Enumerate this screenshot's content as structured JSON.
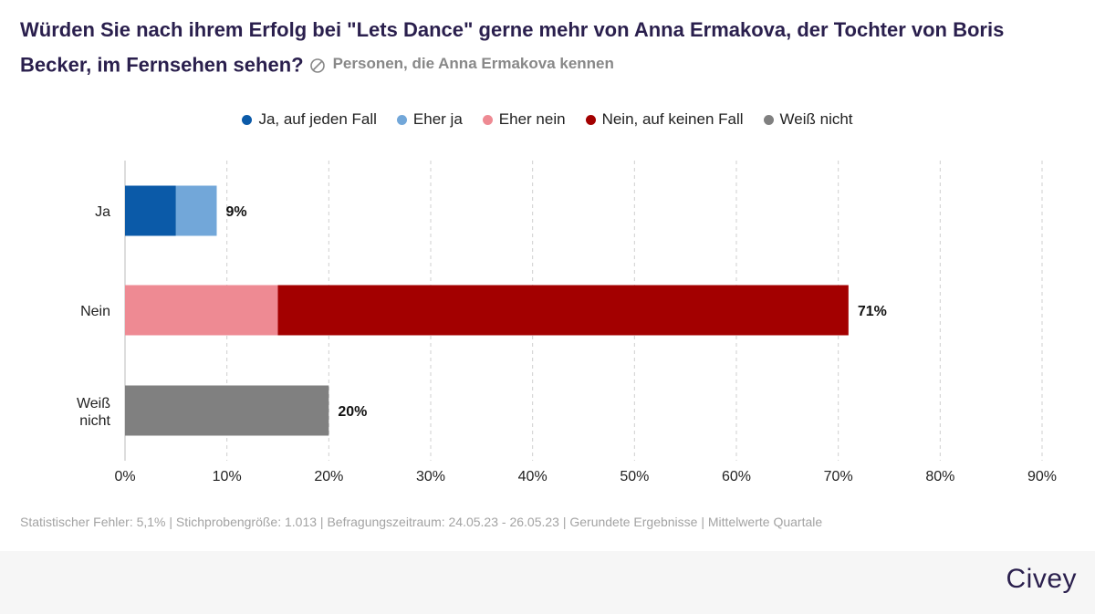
{
  "title": "Würden Sie nach ihrem Erfolg bei \"Lets Dance\" gerne mehr von Anna Ermakova, der Tochter von Boris Becker, im Fernsehen sehen?",
  "subtitle": "Personen, die Anna Ermakova kennen",
  "footer_note": "Statistischer Fehler: 5,1% | Stichprobengröße: 1.013 | Befragungszeitraum: 24.05.23 - 26.05.23 | Gerundete Ergebnisse | Mittelwerte Quartale",
  "brand": "Civey",
  "legend": [
    {
      "label": "Ja, auf jeden Fall",
      "color": "#0b5aa8"
    },
    {
      "label": "Eher ja",
      "color": "#72a7d9"
    },
    {
      "label": "Eher nein",
      "color": "#ee8a93"
    },
    {
      "label": "Nein, auf keinen Fall",
      "color": "#a30000"
    },
    {
      "label": "Weiß nicht",
      "color": "#808080"
    }
  ],
  "chart_data": {
    "type": "bar",
    "orientation": "horizontal",
    "stacked": true,
    "categories": [
      "Ja",
      "Nein",
      "Weiß nicht"
    ],
    "series": [
      {
        "name": "Ja, auf jeden Fall",
        "color": "#0b5aa8",
        "values": [
          5,
          0,
          0
        ]
      },
      {
        "name": "Eher ja",
        "color": "#72a7d9",
        "values": [
          4,
          0,
          0
        ]
      },
      {
        "name": "Eher nein",
        "color": "#ee8a93",
        "values": [
          0,
          15,
          0
        ]
      },
      {
        "name": "Nein, auf keinen Fall",
        "color": "#a30000",
        "values": [
          0,
          56,
          0
        ]
      },
      {
        "name": "Weiß nicht",
        "color": "#808080",
        "values": [
          0,
          0,
          20
        ]
      }
    ],
    "totals": [
      "9%",
      "71%",
      "20%"
    ],
    "xlim": [
      0,
      90
    ],
    "xticks": [
      "0%",
      "10%",
      "20%",
      "30%",
      "40%",
      "50%",
      "60%",
      "70%",
      "80%",
      "90%"
    ],
    "grid": "vertical dashed",
    "legend_position": "top-center"
  }
}
